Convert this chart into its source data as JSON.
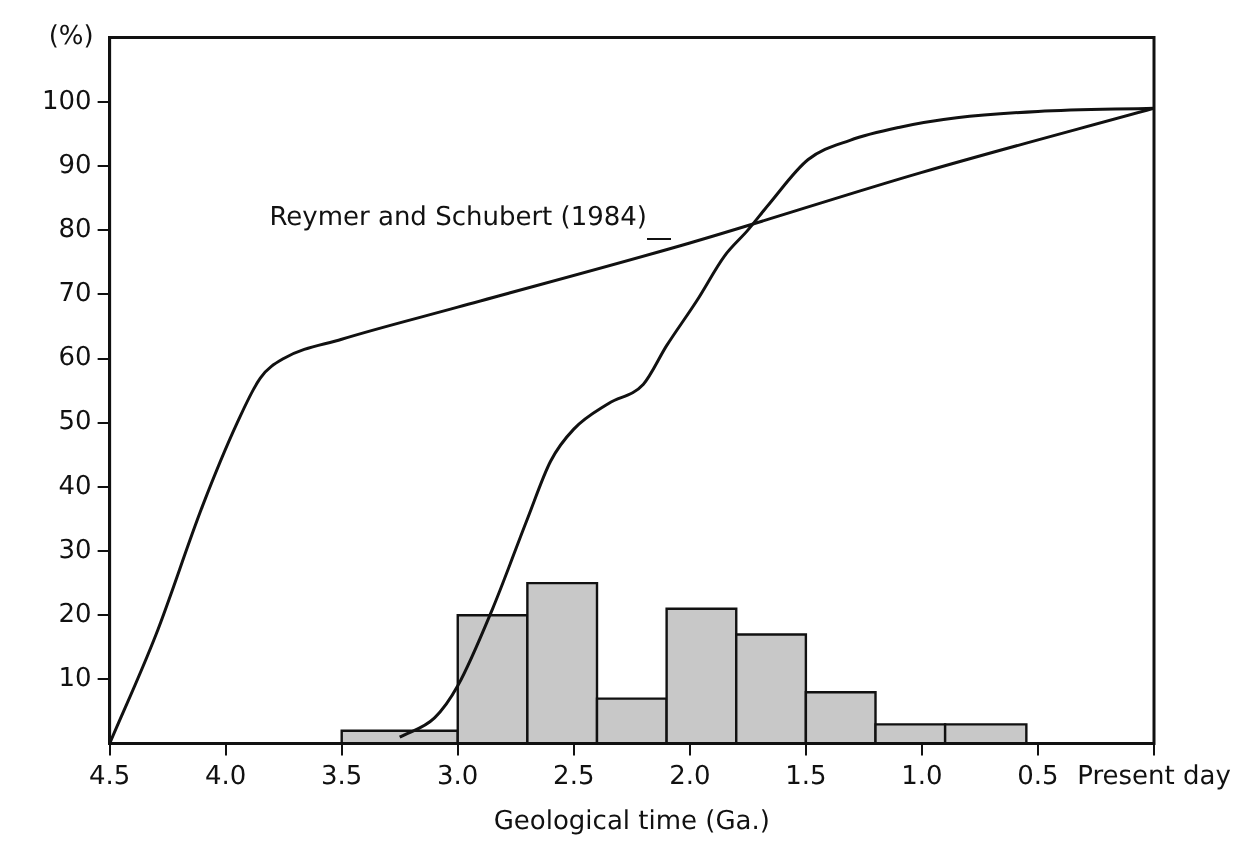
{
  "chart_data": {
    "type": "histogram",
    "xlabel": "Geological time (Ga.)",
    "ylabel": "(%)",
    "bins": [
      3.5,
      3.0,
      2.7,
      2.4,
      2.1,
      1.8,
      1.5,
      1.2,
      0.9,
      0.55
    ],
    "values": [
      2,
      20,
      25,
      7,
      21,
      17,
      8,
      3,
      3
    ],
    "color": "#c8c8c8",
    "series": [
      {
        "type": "line",
        "color": "#111111",
        "x": [
          4.5,
          4.3,
          4.1,
          3.95,
          3.85,
          3.75,
          3.5,
          3.0,
          2.0,
          1.0,
          0
        ],
        "values": [
          0,
          17,
          37,
          50,
          57,
          60,
          63,
          68,
          78,
          89,
          99
        ]
      },
      {
        "type": "line",
        "color": "#111111",
        "x": [
          3.25,
          3.1,
          3.0,
          2.85,
          2.7,
          2.6,
          2.5,
          2.35,
          2.2,
          2.1,
          1.97,
          1.85,
          1.75,
          1.66,
          1.49,
          1.31,
          1.1,
          0.85,
          0.5,
          0
        ],
        "values": [
          1,
          4,
          9,
          21,
          35,
          44,
          49,
          53,
          56,
          62,
          69,
          76,
          80,
          84,
          91,
          94,
          96,
          97.5,
          98.5,
          99
        ]
      }
    ],
    "annotations": [
      {
        "text": "Reymer and Schubert (1984)",
        "x": 2.15,
        "y": 78
      }
    ],
    "xlim": [
      4.5,
      0
    ],
    "xticks": [
      4.5,
      {
        "value": 4,
        "label": "4.0"
      },
      3.5,
      {
        "value": 3,
        "label": "3.0"
      },
      2.5,
      {
        "value": 2,
        "label": "2.0"
      },
      1.5,
      {
        "value": 1,
        "label": "1.0"
      },
      0.5,
      {
        "value": 0,
        "label": "Present day"
      }
    ],
    "ylim": [
      0,
      110
    ],
    "yticks": [
      10,
      20,
      30,
      40,
      50,
      60,
      70,
      80,
      90,
      100
    ],
    "grid": false,
    "legend": false,
    "marker": "none",
    "line_style": "solid"
  }
}
